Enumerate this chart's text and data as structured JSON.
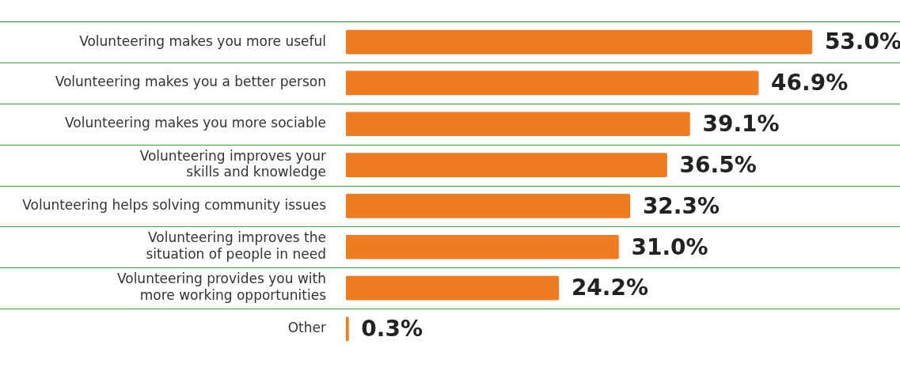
{
  "chart_data": {
    "type": "bar",
    "orientation": "horizontal",
    "categories": [
      "Volunteering makes you more useful",
      "Volunteering makes you a better person",
      "Volunteering makes you more sociable",
      "Volunteering improves your\nskills and knowledge",
      "Volunteering helps solving community issues",
      "Volunteering improves the\nsituation of people in need",
      "Volunteering provides you with\nmore working opportunities",
      "Other"
    ],
    "values": [
      53.0,
      46.9,
      39.1,
      36.5,
      32.3,
      31.0,
      24.2,
      0.3
    ],
    "value_labels": [
      "53.0%",
      "46.9%",
      "39.1%",
      "36.5%",
      "32.3%",
      "31.0%",
      "24.2%",
      "0.3%"
    ],
    "color": "#f07c22",
    "xlim": [
      0,
      63
    ],
    "tick_labels": "y",
    "grid": "y",
    "legend": false
  }
}
